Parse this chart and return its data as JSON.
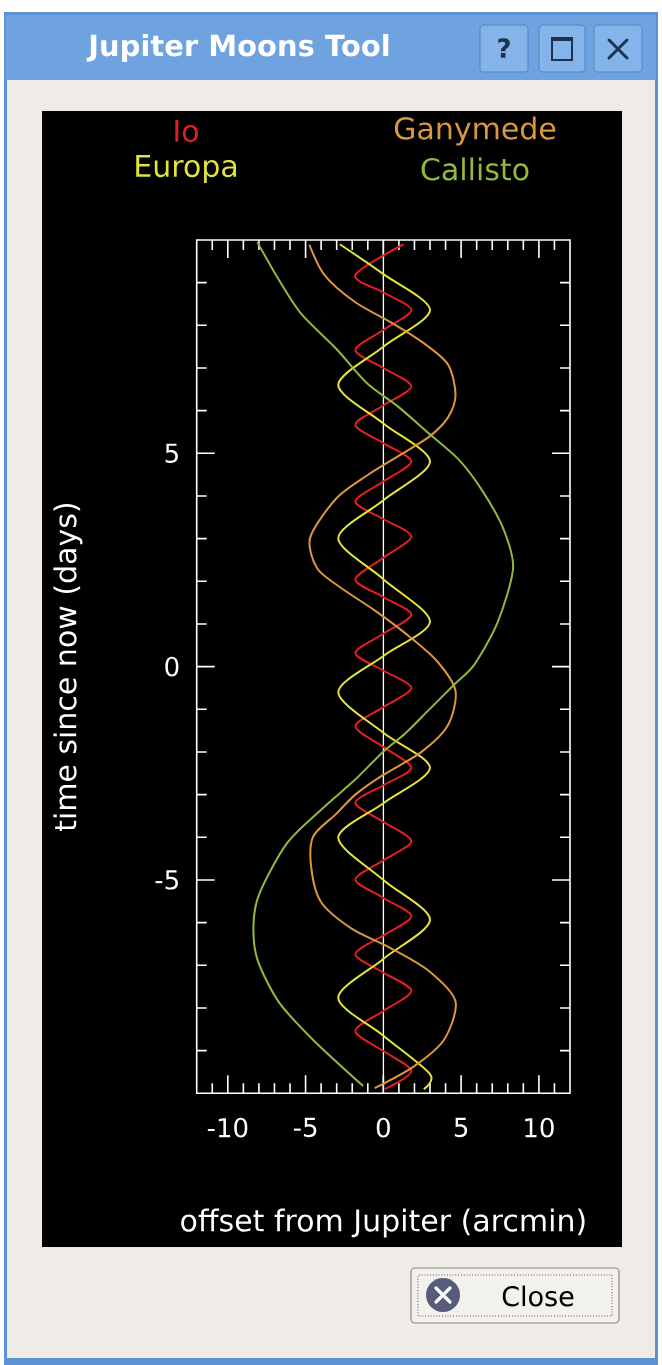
{
  "chart_data": {
    "type": "line",
    "title": "Jupiter Moons Tool",
    "xlabel": "offset from Jupiter (arcmin)",
    "ylabel": "time since now (days)",
    "annotations": [
      "?",
      "Close"
    ],
    "xlim": [
      -12,
      12
    ],
    "ylim": [
      -10,
      10
    ],
    "xticks": [
      {
        "value": -11,
        "label": null
      },
      -10,
      {
        "value": -9,
        "label": null
      },
      {
        "value": -8,
        "label": null
      },
      {
        "value": -7,
        "label": null
      },
      {
        "value": -6,
        "label": null
      },
      -5,
      {
        "value": -4,
        "label": null
      },
      {
        "value": -3,
        "label": null
      },
      {
        "value": -2,
        "label": null
      },
      {
        "value": -1,
        "label": null
      },
      0,
      {
        "value": 1,
        "label": null
      },
      {
        "value": 2,
        "label": null
      },
      {
        "value": 3,
        "label": null
      },
      {
        "value": 4,
        "label": null
      },
      5,
      {
        "value": 6,
        "label": null
      },
      {
        "value": 7,
        "label": null
      },
      {
        "value": 8,
        "label": null
      },
      {
        "value": 9,
        "label": null
      },
      10,
      {
        "value": 11,
        "label": null
      }
    ],
    "yticks": [
      {
        "value": -9,
        "label": null
      },
      {
        "value": -8,
        "label": null
      },
      {
        "value": -7,
        "label": null
      },
      {
        "value": -6,
        "label": null
      },
      -5,
      {
        "value": -4,
        "label": null
      },
      {
        "value": -3,
        "label": null
      },
      {
        "value": -2,
        "label": null
      },
      {
        "value": -1,
        "label": null
      },
      0,
      {
        "value": 1,
        "label": null
      },
      {
        "value": 2,
        "label": null
      },
      {
        "value": 3,
        "label": null
      },
      {
        "value": 4,
        "label": null
      },
      5,
      {
        "value": 6,
        "label": null
      },
      {
        "value": 7,
        "label": null
      },
      {
        "value": 8,
        "label": null
      },
      {
        "value": 9,
        "label": null
      }
    ],
    "legend": "top",
    "ref_lines": [
      {
        "axis": "x",
        "value": 0,
        "color": "#ffffff"
      }
    ],
    "series": [
      {
        "name": "Io",
        "color": "#e01e24",
        "x": [
          1.3,
          -1.8,
          0,
          1.8,
          0,
          -1.8,
          0,
          1.8,
          0,
          -1.8,
          0,
          1.8,
          0,
          -1.8,
          0,
          1.8,
          0,
          -1.8,
          0,
          1.8,
          0,
          -1.8,
          0,
          1.8,
          0,
          -1.8,
          0,
          1.8,
          0,
          -1.8,
          0,
          1.8,
          0,
          -1.8,
          0,
          1.8,
          0,
          -1.8,
          0,
          1.8,
          0,
          -1.8,
          0,
          1.8,
          0.1
        ],
        "values": [
          9.9,
          9.18,
          8.77,
          8.36,
          7.89,
          7.42,
          7.0,
          6.57,
          6.12,
          5.67,
          5.24,
          4.81,
          4.34,
          3.87,
          3.46,
          3.05,
          2.55,
          2.04,
          1.63,
          1.22,
          0.77,
          0.32,
          -0.09,
          -0.5,
          -0.95,
          -1.4,
          -1.88,
          -2.37,
          -2.78,
          -3.19,
          -3.64,
          -4.09,
          -4.54,
          -4.99,
          -5.42,
          -5.85,
          -6.3,
          -6.74,
          -7.17,
          -7.6,
          -8.07,
          -8.54,
          -9.01,
          -9.48,
          -9.9
        ]
      },
      {
        "name": "Europa",
        "color": "#e4e43c",
        "x": [
          -2.8,
          0,
          3.0,
          0,
          -2.9,
          0,
          3.0,
          0,
          -2.9,
          0,
          3.0,
          0,
          -2.9,
          0,
          3.0,
          0,
          -2.9,
          0,
          3.0,
          0,
          -2.9,
          0,
          3.0,
          2.6
        ],
        "values": [
          9.9,
          9.2,
          8.36,
          7.5,
          6.6,
          5.7,
          4.81,
          3.9,
          3.01,
          2.05,
          1.06,
          0.25,
          -0.6,
          -1.55,
          -2.37,
          -3.2,
          -4.01,
          -5.0,
          -5.93,
          -6.85,
          -7.76,
          -8.65,
          -9.55,
          -9.9
        ]
      },
      {
        "name": "Ganymede",
        "color": "#dc963c",
        "x": [
          -4.76,
          -3.77,
          -1.8,
          0.43,
          2.41,
          4.14,
          4.64,
          4.14,
          2.91,
          0.93,
          -1.05,
          -3.03,
          -4.7,
          -4.27,
          -2.78,
          -0.56,
          1.42,
          3.4,
          4.64,
          4.14,
          2.41,
          -0.06,
          -1.8,
          -3.03,
          -4.51,
          -4.64,
          -4.02,
          -2.04,
          0.43,
          2.91,
          4.64,
          3.89,
          1.92,
          -0.56
        ],
        "values": [
          9.89,
          9.17,
          8.54,
          8.08,
          7.63,
          7.09,
          6.37,
          5.83,
          5.38,
          4.93,
          4.48,
          3.94,
          3.03,
          2.31,
          1.86,
          1.32,
          0.78,
          0.15,
          -0.57,
          -1.38,
          -2.01,
          -2.55,
          -3.0,
          -3.45,
          -3.98,
          -4.7,
          -5.51,
          -6.14,
          -6.59,
          -7.13,
          -7.85,
          -8.75,
          -9.38,
          -9.88
        ]
      },
      {
        "name": "Callisto",
        "color": "#92b83e",
        "x": [
          -8.1,
          -6.74,
          -5.26,
          -3.03,
          -1.05,
          0.93,
          2.91,
          4.88,
          6.37,
          7.73,
          8.34,
          7.36,
          5.87,
          4.64,
          2.91,
          1.42,
          -0.06,
          -1.79,
          -4.02,
          -6.24,
          -7.98,
          -8.35,
          -8.1,
          -6.74,
          -4.51,
          -1.3
        ],
        "values": [
          9.95,
          9.08,
          8.26,
          7.45,
          6.64,
          6.1,
          5.47,
          4.84,
          4.12,
          3.22,
          2.31,
          1.05,
          0.06,
          -0.39,
          -1.02,
          -1.56,
          -2.01,
          -2.64,
          -3.36,
          -4.16,
          -5.33,
          -6.05,
          -6.86,
          -7.85,
          -8.75,
          -9.83
        ]
      }
    ]
  }
}
